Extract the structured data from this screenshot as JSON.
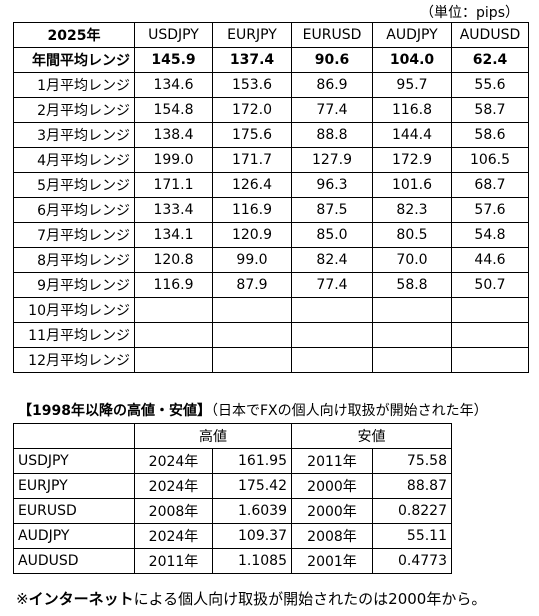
{
  "unit_note": "（単位：pips）",
  "range_table": {
    "header": [
      "2025年",
      "USDJPY",
      "EURJPY",
      "EURUSD",
      "AUDJPY",
      "AUDUSD"
    ],
    "rows": [
      [
        "年間平均レンジ",
        "145.9",
        "137.4",
        "90.6",
        "104.0",
        "62.4"
      ],
      [
        "1月平均レンジ",
        "134.6",
        "153.6",
        "86.9",
        "95.7",
        "55.6"
      ],
      [
        "2月平均レンジ",
        "154.8",
        "172.0",
        "77.4",
        "116.8",
        "58.7"
      ],
      [
        "3月平均レンジ",
        "138.4",
        "175.6",
        "88.8",
        "144.4",
        "58.6"
      ],
      [
        "4月平均レンジ",
        "199.0",
        "171.7",
        "127.9",
        "172.9",
        "106.5"
      ],
      [
        "5月平均レンジ",
        "171.1",
        "126.4",
        "96.3",
        "101.6",
        "68.7"
      ],
      [
        "6月平均レンジ",
        "133.4",
        "116.9",
        "87.5",
        "82.3",
        "57.6"
      ],
      [
        "7月平均レンジ",
        "134.1",
        "120.9",
        "85.0",
        "80.5",
        "54.8"
      ],
      [
        "8月平均レンジ",
        "120.8",
        "99.0",
        "82.4",
        "70.0",
        "44.6"
      ],
      [
        "9月平均レンジ",
        "116.9",
        "87.9",
        "77.4",
        "58.8",
        "50.7"
      ],
      [
        "10月平均レンジ"
      ],
      [
        "11月平均レンジ"
      ],
      [
        "12月平均レンジ"
      ]
    ]
  },
  "high_low": {
    "title": "【1998年以降の高値・安値】",
    "subtitle": "（日本でFXの個人向け取扱が開始された年）",
    "header": [
      "高値",
      "安値"
    ],
    "rows": [
      [
        "USDJPY",
        "2024年",
        "161.95",
        "2011年",
        "75.58"
      ],
      [
        "EURJPY",
        "2024年",
        "175.42",
        "2000年",
        "88.87"
      ],
      [
        "EURUSD",
        "2008年",
        "1.6039",
        "2000年",
        "0.8227"
      ],
      [
        "AUDJPY",
        "2024年",
        "109.37",
        "2008年",
        "55.11"
      ],
      [
        "AUDUSD",
        "2011年",
        "1.1085",
        "2001年",
        "0.4773"
      ]
    ]
  },
  "footnote": {
    "prefix": "※",
    "bold": "インターネット",
    "rest": "による個人向け取扱が開始されたのは2000年から。"
  }
}
